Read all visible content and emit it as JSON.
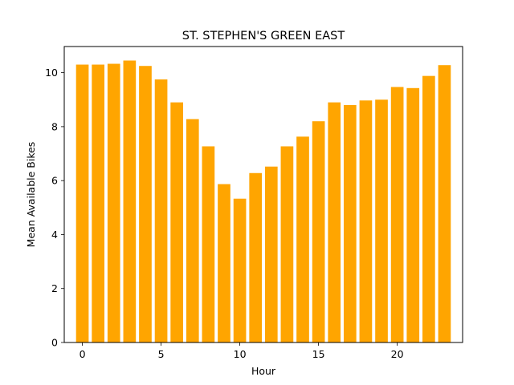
{
  "chart_data": {
    "type": "bar",
    "title": "ST. STEPHEN'S GREEN EAST",
    "xlabel": "Hour",
    "ylabel": "Mean Available Bikes",
    "bar_color": "#ffa500",
    "x": [
      0,
      1,
      2,
      3,
      4,
      5,
      6,
      7,
      8,
      9,
      10,
      11,
      12,
      13,
      14,
      15,
      16,
      17,
      18,
      19,
      20,
      21,
      22,
      23
    ],
    "values": [
      10.3,
      10.3,
      10.33,
      10.45,
      10.25,
      9.75,
      8.9,
      8.28,
      7.27,
      5.87,
      5.33,
      6.28,
      6.52,
      7.27,
      7.63,
      8.2,
      8.9,
      8.8,
      8.97,
      9.0,
      9.47,
      9.43,
      9.88,
      10.28
    ],
    "xticks": [
      0,
      5,
      10,
      15,
      20
    ],
    "yticks": [
      0,
      2,
      4,
      6,
      8,
      10
    ],
    "xlim": [
      -1.15,
      24.15
    ],
    "ylim": [
      0,
      10.97
    ],
    "grid": false,
    "legend": "none"
  }
}
